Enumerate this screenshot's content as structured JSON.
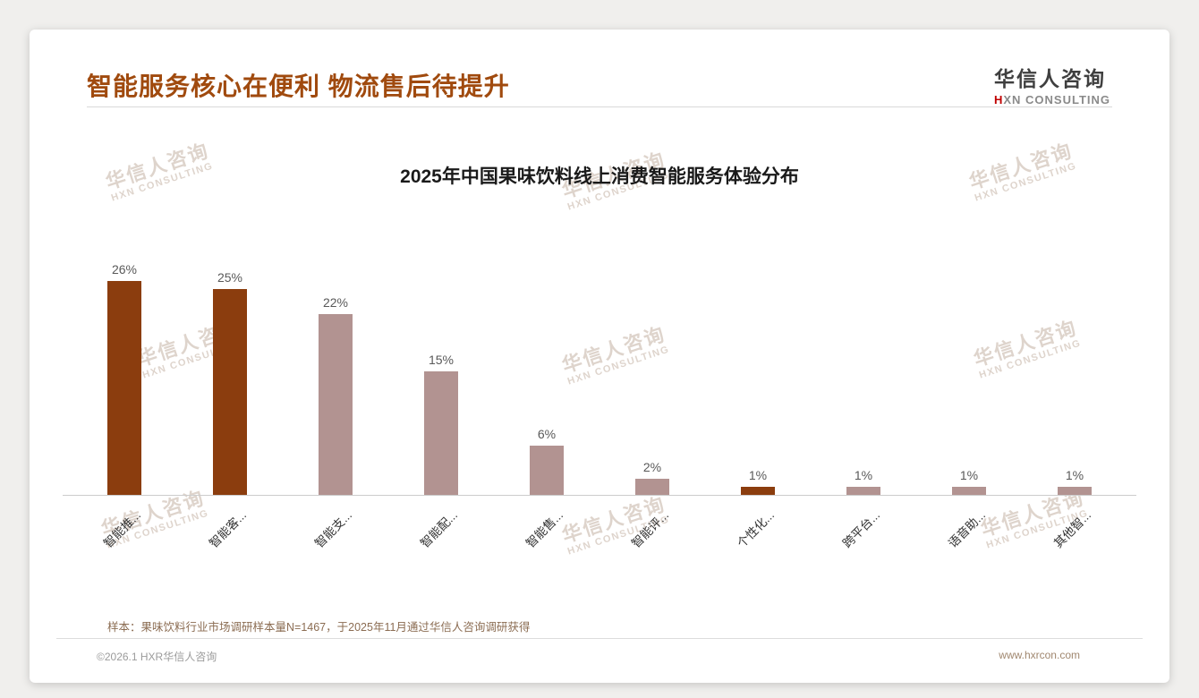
{
  "header": {
    "title": "智能服务核心在便利 物流售后待提升",
    "logo": {
      "cn": "华信人咨询",
      "en_mark": "H",
      "en_rest": "XN CONSULTING"
    }
  },
  "watermark": {
    "line1": "华信人咨询",
    "line2": "HXN CONSULTING"
  },
  "chart_data": {
    "type": "bar",
    "title": "2025年中国果味饮料线上消费智能服务体验分布",
    "categories": [
      "智能推...",
      "智能客...",
      "智能支...",
      "智能配...",
      "智能售...",
      "智能评...",
      "个性化...",
      "跨平台...",
      "语音助...",
      "其他智..."
    ],
    "values": [
      26,
      25,
      22,
      15,
      6,
      2,
      1,
      1,
      1,
      1
    ],
    "value_labels": [
      "26%",
      "25%",
      "22%",
      "15%",
      "6%",
      "2%",
      "1%",
      "1%",
      "1%",
      "1%"
    ],
    "bar_colors": [
      "#8b3d0e",
      "#8b3d0e",
      "#b29391",
      "#b29391",
      "#b29391",
      "#b29391",
      "#8b3d0e",
      "#b29391",
      "#b29391",
      "#b29391"
    ],
    "xlabel": "",
    "ylabel": "",
    "ylim": [
      0,
      30
    ],
    "grid": false,
    "legend": false
  },
  "footnote": "样本：果味饮料行业市场调研样本量N=1467，于2025年11月通过华信人咨询调研获得",
  "footer": {
    "copyright": "©2026.1 HXR华信人咨询",
    "website": "www.hxrcon.com"
  },
  "colors": {
    "accent_dark": "#8b3d0e",
    "accent_light": "#b29391",
    "title": "#a04a0e"
  }
}
